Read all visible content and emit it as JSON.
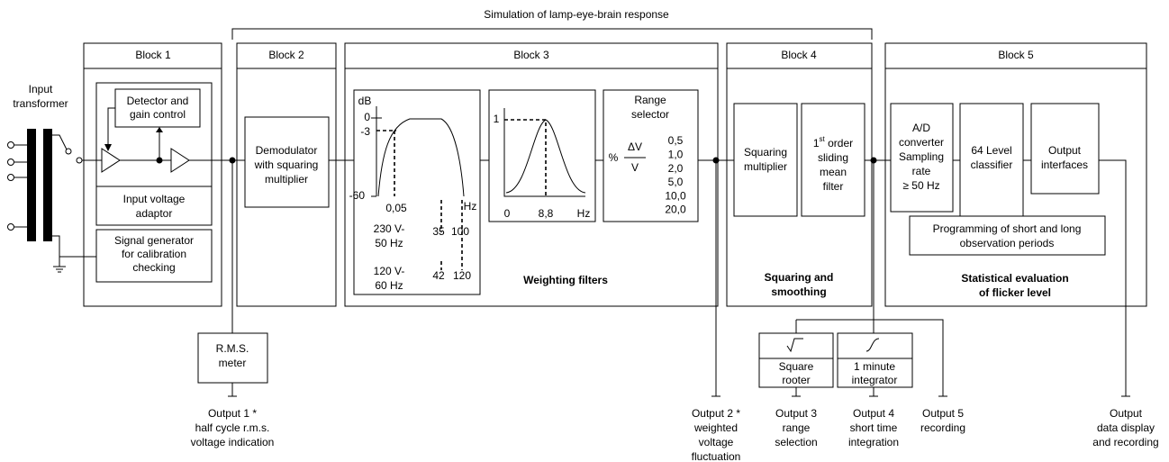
{
  "header": {
    "title": "Simulation of lamp-eye-brain response"
  },
  "blocks": [
    "Block 1",
    "Block 2",
    "Block 3",
    "Block 4",
    "Block 5"
  ],
  "input_transformer": [
    "Input",
    "transformer"
  ],
  "block1": {
    "detector": [
      "Detector and",
      "gain control"
    ],
    "adaptor": [
      "Input voltage",
      "adaptor"
    ],
    "generator": [
      "Signal generator",
      "for calibration",
      "checking"
    ]
  },
  "block2": {
    "demodulator": [
      "Demodulator",
      "with squaring",
      "multiplier"
    ]
  },
  "block3": {
    "filter_graph": {
      "y_unit": "dB",
      "y_labels": [
        "0",
        "-3",
        "-60"
      ],
      "x_label": "0,05",
      "x_unit": "Hz",
      "supply_50": [
        "230 V-",
        "50 Hz"
      ],
      "marks_50": [
        "35",
        "100"
      ],
      "supply_60": [
        "120 V-",
        "60 Hz"
      ],
      "marks_60": [
        "42",
        "120"
      ]
    },
    "response_graph": {
      "peak": "1",
      "origin": "0",
      "center": "8,8",
      "unit": "Hz"
    },
    "range_selector": {
      "title": [
        "Range",
        "selector"
      ],
      "percent": "%",
      "numerator": "ΔV",
      "denominator": "V",
      "ranges": [
        "0,5",
        "1,0",
        "2,0",
        "5,0",
        "10,0",
        "20,0"
      ]
    },
    "caption": "Weighting filters"
  },
  "block4": {
    "squaring": [
      "Squaring",
      "multiplier"
    ],
    "filter": {
      "order": "1",
      "order_suffix": "st",
      "order_word": " order",
      "lines": [
        "sliding",
        "mean",
        "filter"
      ]
    },
    "caption": [
      "Squaring and",
      "smoothing"
    ]
  },
  "block5": {
    "converter": [
      "A/D",
      "converter",
      "Sampling",
      "rate",
      "≥ 50 Hz"
    ],
    "classifier": [
      "64 Level",
      "classifier"
    ],
    "interfaces": [
      "Output",
      "interfaces"
    ],
    "programming": [
      "Programming of short and long",
      "observation periods"
    ],
    "caption": [
      "Statistical evaluation",
      "of flicker level"
    ]
  },
  "rms_meter": [
    "R.M.S.",
    "meter"
  ],
  "square_rooter": [
    "Square",
    "rooter"
  ],
  "integrator": [
    "1 minute",
    "integrator"
  ],
  "outputs": [
    {
      "label": "Output 1 *",
      "description": [
        "half cycle r.m.s.",
        "voltage indication"
      ]
    },
    {
      "label": "Output 2 *",
      "description": [
        "weighted",
        "voltage",
        "fluctuation"
      ]
    },
    {
      "label": "Output 3",
      "description": [
        "range",
        "selection"
      ]
    },
    {
      "label": "Output 4",
      "description": [
        "short time",
        "integration"
      ]
    },
    {
      "label": "Output 5",
      "description": [
        "recording"
      ]
    },
    {
      "label": "Output",
      "description": [
        "data display",
        "and recording"
      ]
    }
  ]
}
